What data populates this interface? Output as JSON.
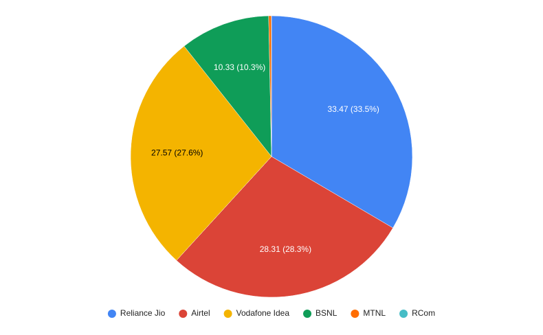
{
  "chart_data": {
    "type": "pie",
    "categories": [
      "Reliance Jio",
      "Airtel",
      "Vodafone Idea",
      "BSNL",
      "MTNL",
      "RCom"
    ],
    "values": [
      33.47,
      28.31,
      27.57,
      10.33,
      0.3,
      0.02
    ],
    "value_labels": [
      "33.47 (33.5%)",
      "28.31 (28.3%)",
      "27.57 (27.6%)",
      "10.33 (10.3%)",
      null,
      null
    ],
    "colors": [
      "#4285f4",
      "#db4437",
      "#f4b400",
      "#0f9d58",
      "#ff6d01",
      "#46bdc6"
    ],
    "legend": "bottom"
  }
}
